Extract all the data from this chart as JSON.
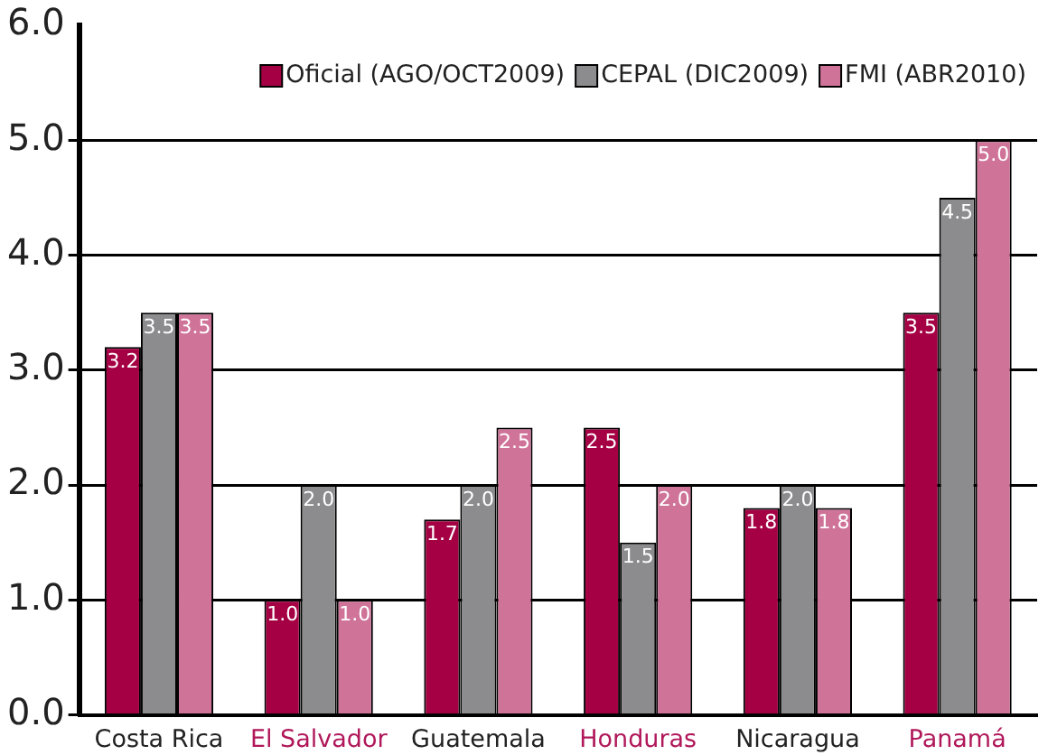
{
  "chart_data": {
    "type": "bar",
    "categories": [
      "Costa Rica",
      "El Salvador",
      "Guatemala",
      "Honduras",
      "Nicaragua",
      "Panamá"
    ],
    "series": [
      {
        "name": "Oficial (AGO/OCT2009)",
        "color": "#a50044",
        "values": [
          3.2,
          1.0,
          1.7,
          2.5,
          1.8,
          3.5
        ],
        "value_labels": [
          "3.2",
          "1.0",
          "1.7",
          "2.5",
          "1.8",
          "3.5"
        ]
      },
      {
        "name": "CEPAL (DIC2009)",
        "color": "#8c8c8e",
        "values": [
          3.5,
          2.0,
          2.0,
          1.5,
          2.0,
          4.5
        ],
        "value_labels": [
          "3.5",
          "2.0",
          "2.0",
          "1.5",
          "2.0",
          "4.5"
        ]
      },
      {
        "name": "FMI (ABR2010)",
        "color": "#cf7399",
        "values": [
          3.5,
          1.0,
          2.5,
          2.0,
          1.8,
          5.0
        ],
        "value_labels": [
          "3.5",
          "1.0",
          "2.5",
          "2.0",
          "1.8",
          "5.0"
        ]
      }
    ],
    "ylim": [
      0,
      6
    ],
    "yticks": [
      {
        "value": 0,
        "label": "0.0"
      },
      {
        "value": 1,
        "label": "1.0"
      },
      {
        "value": 2,
        "label": "2.0"
      },
      {
        "value": 3,
        "label": "3.0"
      },
      {
        "value": 4,
        "label": "4.0"
      },
      {
        "value": 5,
        "label": "5.0"
      },
      {
        "value": 6,
        "label": "6.0"
      }
    ],
    "grid": "y",
    "legend": "top right"
  }
}
